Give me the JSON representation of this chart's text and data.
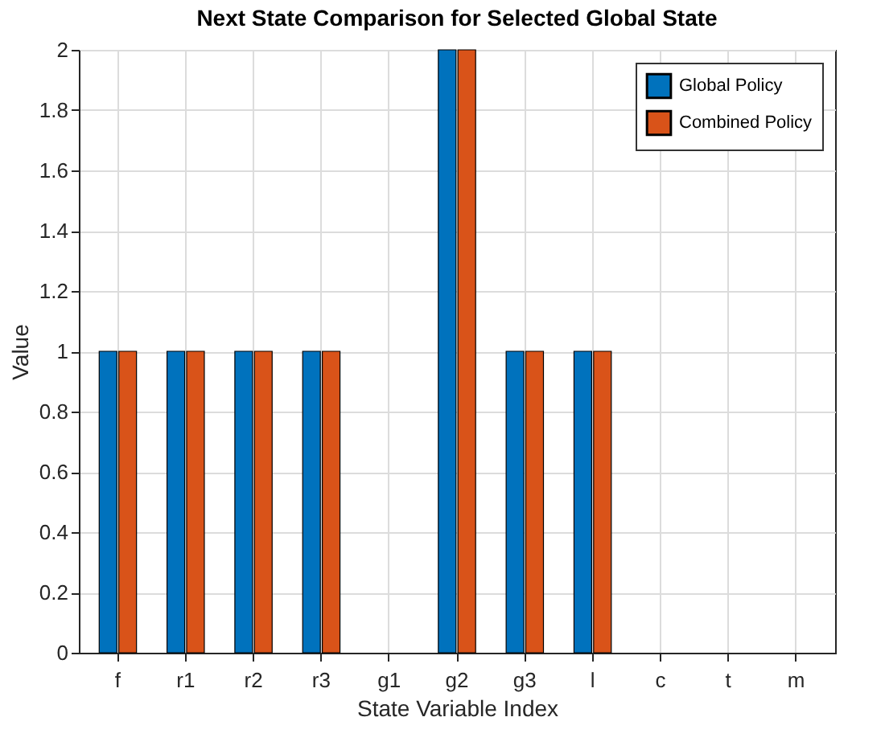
{
  "chart_data": {
    "type": "bar",
    "title": "Next State Comparison for Selected Global State",
    "xlabel": "State Variable Index",
    "ylabel": "Value",
    "categories": [
      "f",
      "r1",
      "r2",
      "r3",
      "g1",
      "g2",
      "g3",
      "l",
      "c",
      "t",
      "m"
    ],
    "series": [
      {
        "name": "Global Policy",
        "color": "#0072bd",
        "values": [
          1,
          1,
          1,
          1,
          0,
          2,
          1,
          1,
          0,
          0,
          0
        ]
      },
      {
        "name": "Combined Policy",
        "color": "#d95319",
        "values": [
          1,
          1,
          1,
          1,
          0,
          2,
          1,
          1,
          0,
          0,
          0
        ]
      }
    ],
    "ylim": [
      0,
      2
    ],
    "yticks": [
      0,
      0.2,
      0.4,
      0.6,
      0.8,
      1,
      1.2,
      1.4,
      1.6,
      1.8,
      2
    ],
    "grid": true,
    "legend": "top right"
  }
}
